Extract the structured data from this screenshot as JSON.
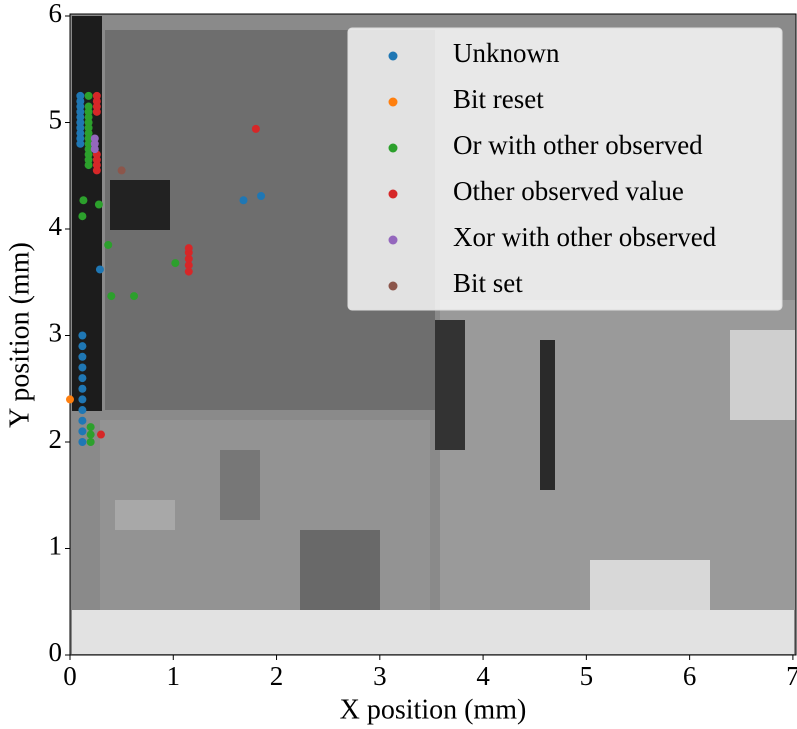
{
  "chart_data": {
    "type": "scatter",
    "x_label": "X position (mm)",
    "y_label": "Y position (mm)",
    "xlim": [
      0,
      7.03
    ],
    "ylim": [
      0,
      6.0
    ],
    "xticks": [
      0,
      1,
      2,
      3,
      4,
      5,
      6,
      7
    ],
    "yticks": [
      0,
      1,
      2,
      3,
      4,
      5,
      6
    ],
    "legend": "upper right",
    "series": [
      {
        "name": "Unknown",
        "color": "#1f77b4",
        "x": [
          0.1,
          0.1,
          0.1,
          0.1,
          0.1,
          0.1,
          0.1,
          0.1,
          0.1,
          0.1,
          0.12,
          0.12,
          0.12,
          0.12,
          0.12,
          0.12,
          0.12,
          0.12,
          0.12,
          0.12,
          0.12,
          1.68,
          1.85,
          0.29
        ],
        "y": [
          4.8,
          4.85,
          4.9,
          4.95,
          5.0,
          5.05,
          5.1,
          5.15,
          5.2,
          5.25,
          2.0,
          2.1,
          2.2,
          2.3,
          2.4,
          2.5,
          2.6,
          2.7,
          2.8,
          2.9,
          3.0,
          4.27,
          4.31,
          3.62
        ]
      },
      {
        "name": "Bit reset",
        "color": "#ff7f0e",
        "x": [
          0.0
        ],
        "y": [
          2.4
        ]
      },
      {
        "name": "Or with other observed",
        "color": "#2ca02c",
        "x": [
          0.18,
          0.18,
          0.18,
          0.18,
          0.18,
          0.18,
          0.18,
          0.18,
          0.18,
          0.18,
          0.18,
          0.18,
          0.18,
          0.2,
          0.2,
          0.2,
          0.13,
          0.28,
          0.12,
          0.37,
          1.02,
          0.4,
          0.62
        ],
        "y": [
          4.6,
          4.65,
          4.7,
          4.75,
          4.8,
          4.85,
          4.9,
          4.95,
          5.0,
          5.05,
          5.1,
          5.15,
          5.25,
          2.0,
          2.07,
          2.14,
          4.27,
          4.23,
          4.12,
          3.85,
          3.68,
          3.37,
          3.37
        ]
      },
      {
        "name": "Other observed value",
        "color": "#d62728",
        "x": [
          0.26,
          0.26,
          0.26,
          0.26,
          0.26,
          0.26,
          0.26,
          0.26,
          1.15,
          1.15,
          1.15,
          1.15,
          1.15,
          1.8,
          0.3
        ],
        "y": [
          4.55,
          4.6,
          4.65,
          4.7,
          5.1,
          5.15,
          5.2,
          5.25,
          3.6,
          3.66,
          3.72,
          3.78,
          3.82,
          4.94,
          2.07
        ]
      },
      {
        "name": "Xor with other observed",
        "color": "#9467bd",
        "x": [
          0.24,
          0.24,
          0.24
        ],
        "y": [
          4.75,
          4.8,
          4.85
        ]
      },
      {
        "name": "Bit set",
        "color": "#8c564b",
        "x": [
          0.5
        ],
        "y": [
          4.55
        ]
      }
    ]
  }
}
